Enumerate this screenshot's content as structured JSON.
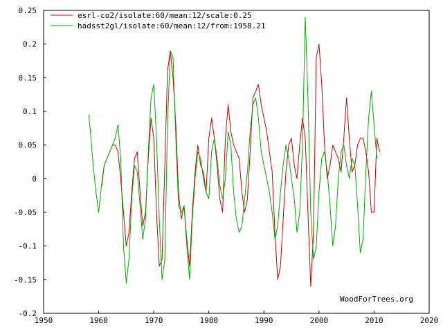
{
  "credit": "WoodForTrees.org",
  "chart_data": {
    "type": "line",
    "xlim": [
      1950,
      2020
    ],
    "ylim": [
      -0.2,
      0.25
    ],
    "grid": false,
    "legend_position": "top-left",
    "x_ticks": [
      1950,
      1960,
      1970,
      1980,
      1990,
      2000,
      2010,
      2020
    ],
    "y_ticks": [
      -0.2,
      -0.15,
      -0.1,
      -0.05,
      0,
      0.05,
      0.1,
      0.15,
      0.2,
      0.25
    ],
    "x_tick_labels": [
      "1950",
      "1960",
      "1970",
      "1980",
      "1990",
      "2000",
      "2010",
      "2020"
    ],
    "y_tick_labels": [
      "-0.2",
      "-0.15",
      "-0.1",
      "-0.05",
      "0",
      "0.05",
      "0.1",
      "0.15",
      "0.2",
      "0.25"
    ],
    "series": [
      {
        "name": "esrl-co2/isolate:60/mean:12/scale:0.25",
        "color": "#cc0000",
        "x": [
          1960.6,
          1961.0,
          1961.5,
          1962.0,
          1962.5,
          1963.0,
          1963.5,
          1964.0,
          1964.5,
          1965.0,
          1965.5,
          1966.0,
          1966.5,
          1967.0,
          1967.5,
          1968.0,
          1968.5,
          1969.0,
          1969.5,
          1970.0,
          1970.5,
          1971.0,
          1971.5,
          1972.0,
          1972.5,
          1973.0,
          1973.5,
          1974.0,
          1974.5,
          1975.0,
          1975.5,
          1976.0,
          1976.5,
          1977.0,
          1977.5,
          1978.0,
          1978.5,
          1979.0,
          1979.5,
          1980.0,
          1980.5,
          1981.0,
          1981.5,
          1982.0,
          1982.5,
          1983.0,
          1983.5,
          1984.0,
          1984.5,
          1985.0,
          1985.5,
          1986.0,
          1986.5,
          1987.0,
          1987.5,
          1988.0,
          1988.5,
          1989.0,
          1989.5,
          1990.0,
          1990.5,
          1991.0,
          1991.5,
          1992.0,
          1992.5,
          1993.0,
          1993.5,
          1994.0,
          1994.5,
          1995.0,
          1995.5,
          1996.0,
          1996.5,
          1997.0,
          1997.5,
          1998.0,
          1998.5,
          1999.0,
          1999.5,
          2000.0,
          2000.5,
          2001.0,
          2001.5,
          2002.0,
          2002.5,
          2003.0,
          2003.5,
          2004.0,
          2004.5,
          2005.0,
          2005.5,
          2006.0,
          2006.5,
          2007.0,
          2007.5,
          2008.0,
          2008.5,
          2009.0,
          2009.5,
          2010.0,
          2010.5,
          2011.0
        ],
        "values": [
          -0.01,
          0.02,
          0.03,
          0.04,
          0.05,
          0.05,
          0.04,
          0.0,
          -0.05,
          -0.1,
          -0.08,
          -0.02,
          0.03,
          0.04,
          -0.02,
          -0.07,
          -0.05,
          0.03,
          0.09,
          0.06,
          -0.05,
          -0.13,
          -0.12,
          0.02,
          0.16,
          0.19,
          0.15,
          0.08,
          -0.02,
          -0.06,
          -0.04,
          -0.09,
          -0.13,
          -0.05,
          0.01,
          0.05,
          0.02,
          0.01,
          -0.02,
          0.06,
          0.09,
          0.06,
          0.02,
          -0.03,
          -0.05,
          0.06,
          0.11,
          0.07,
          0.05,
          0.04,
          0.03,
          -0.02,
          -0.05,
          -0.03,
          0.04,
          0.12,
          0.13,
          0.14,
          0.11,
          0.09,
          0.07,
          0.04,
          0.01,
          -0.08,
          -0.15,
          -0.13,
          -0.06,
          0.01,
          0.05,
          0.06,
          0.02,
          0.0,
          0.05,
          0.09,
          0.06,
          -0.05,
          -0.16,
          -0.08,
          0.18,
          0.2,
          0.14,
          0.05,
          0.0,
          0.02,
          0.05,
          0.04,
          0.03,
          0.01,
          0.06,
          0.12,
          0.06,
          0.01,
          0.02,
          0.05,
          0.06,
          0.06,
          0.04,
          0.01,
          -0.05,
          -0.05,
          0.06,
          0.04
        ]
      },
      {
        "name": "hadsst2gl/isolate:60/mean:12/from:1958.21",
        "color": "#00aa00",
        "x": [
          1958.2,
          1958.5,
          1959.0,
          1959.5,
          1960.0,
          1960.5,
          1961.0,
          1961.5,
          1962.0,
          1962.5,
          1963.0,
          1963.5,
          1964.0,
          1964.5,
          1965.0,
          1965.5,
          1966.0,
          1966.5,
          1967.0,
          1967.5,
          1968.0,
          1968.5,
          1969.0,
          1969.5,
          1970.0,
          1970.5,
          1971.0,
          1971.5,
          1972.0,
          1972.5,
          1973.0,
          1973.5,
          1974.0,
          1974.5,
          1975.0,
          1975.5,
          1976.0,
          1976.5,
          1977.0,
          1977.5,
          1978.0,
          1978.5,
          1979.0,
          1979.5,
          1980.0,
          1980.5,
          1981.0,
          1981.5,
          1982.0,
          1982.5,
          1983.0,
          1983.5,
          1984.0,
          1984.5,
          1985.0,
          1985.5,
          1986.0,
          1986.5,
          1987.0,
          1987.5,
          1988.0,
          1988.5,
          1989.0,
          1989.5,
          1990.0,
          1990.5,
          1991.0,
          1991.5,
          1992.0,
          1992.5,
          1993.0,
          1993.5,
          1994.0,
          1994.5,
          1995.0,
          1995.5,
          1996.0,
          1996.5,
          1997.0,
          1997.5,
          1998.0,
          1998.5,
          1999.0,
          1999.5,
          2000.0,
          2000.5,
          2001.0,
          2001.5,
          2002.0,
          2002.5,
          2003.0,
          2003.5,
          2004.0,
          2004.5,
          2005.0,
          2005.5,
          2006.0,
          2006.5,
          2007.0,
          2007.5,
          2008.0,
          2008.5,
          2009.0,
          2009.5,
          2010.0,
          2010.5
        ],
        "values": [
          0.095,
          0.07,
          0.02,
          -0.02,
          -0.05,
          -0.01,
          0.02,
          0.03,
          0.04,
          0.05,
          0.06,
          0.08,
          0.03,
          -0.1,
          -0.155,
          -0.12,
          -0.03,
          0.02,
          0.01,
          -0.04,
          -0.09,
          -0.06,
          0.04,
          0.12,
          0.14,
          0.06,
          -0.06,
          -0.15,
          -0.12,
          0.08,
          0.19,
          0.18,
          0.06,
          -0.04,
          -0.05,
          -0.04,
          -0.1,
          -0.15,
          -0.06,
          0.0,
          0.04,
          0.03,
          0.0,
          -0.02,
          -0.03,
          0.04,
          0.06,
          0.03,
          -0.01,
          -0.03,
          0.0,
          0.07,
          0.05,
          -0.02,
          -0.06,
          -0.08,
          -0.07,
          -0.03,
          0.01,
          0.07,
          0.11,
          0.12,
          0.09,
          0.04,
          0.02,
          0.0,
          -0.02,
          -0.05,
          -0.09,
          -0.07,
          -0.02,
          0.02,
          0.05,
          0.03,
          0.0,
          -0.03,
          -0.08,
          -0.05,
          0.05,
          0.24,
          0.12,
          -0.05,
          -0.12,
          -0.1,
          -0.02,
          0.03,
          0.04,
          0.01,
          -0.04,
          -0.1,
          -0.07,
          0.0,
          0.04,
          0.05,
          0.02,
          0.0,
          0.03,
          0.02,
          -0.04,
          -0.11,
          -0.09,
          0.01,
          0.09,
          0.13,
          0.08,
          0.03
        ]
      }
    ]
  }
}
